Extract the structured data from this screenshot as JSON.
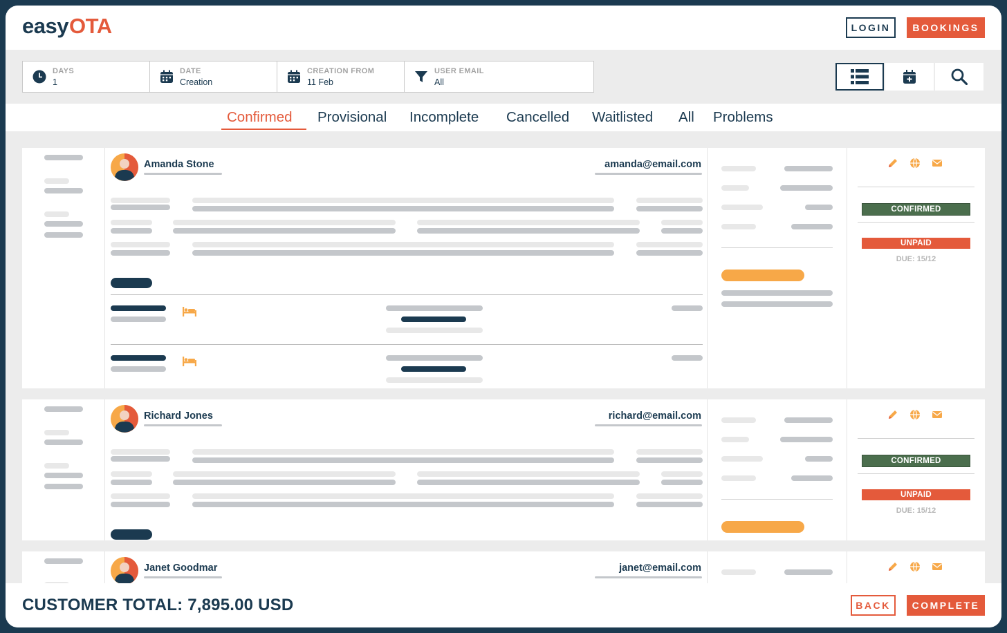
{
  "header": {
    "logo_prefix": "easy",
    "logo_suffix": "OTA",
    "login_label": "LOGIN",
    "bookings_label": "BOOKINGS"
  },
  "filters": [
    {
      "label": "DAYS",
      "value": "1",
      "icon": "clock-icon"
    },
    {
      "label": "DATE",
      "value": "Creation",
      "icon": "calendar-icon"
    },
    {
      "label": "CREATION FROM",
      "value": "11 Feb",
      "icon": "calendar-icon"
    },
    {
      "label": "USER EMAIL",
      "value": "All",
      "icon": "filter-icon"
    }
  ],
  "view_buttons": [
    {
      "name": "list-view-icon",
      "active": true
    },
    {
      "name": "calendar-add-icon",
      "active": false
    },
    {
      "name": "search-icon",
      "active": false
    }
  ],
  "tabs": [
    {
      "label": "Confirmed",
      "active": true
    },
    {
      "label": "Provisional",
      "active": false
    },
    {
      "label": "Incomplete",
      "active": false
    },
    {
      "label": "Cancelled",
      "active": false
    },
    {
      "label": "Waitlisted",
      "active": false
    },
    {
      "label": "All",
      "active": false
    },
    {
      "label": "Problems",
      "active": false
    }
  ],
  "bookings": [
    {
      "name": "Amanda Stone",
      "email": "amanda@email.com",
      "status": "CONFIRMED",
      "payment": "UNPAID",
      "due": "DUE: 15/12"
    },
    {
      "name": "Richard Jones",
      "email": "richard@email.com",
      "status": "CONFIRMED",
      "payment": "UNPAID",
      "due": "DUE: 15/12"
    },
    {
      "name": "Janet Goodmar",
      "email": "janet@email.com"
    }
  ],
  "footer": {
    "total": "CUSTOMER TOTAL: 7,895.00 USD",
    "back_label": "BACK",
    "complete_label": "COMPLETE"
  },
  "colors": {
    "navy": "#1b3a50",
    "accent": "#e45a3b",
    "orange": "#f7a848",
    "confirmed_green": "#4b6e4d"
  }
}
